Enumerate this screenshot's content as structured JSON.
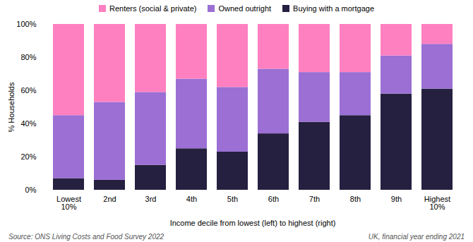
{
  "chart_data": {
    "type": "bar",
    "stacked": true,
    "categories": [
      "Lowest\n10%",
      "2nd",
      "3rd",
      "4th",
      "5th",
      "6th",
      "7th",
      "8th",
      "9th",
      "Highest\n10%"
    ],
    "series": [
      {
        "name": "Buying with a mortgage",
        "color": "#252040",
        "values": [
          7,
          6,
          15,
          25,
          23,
          34,
          41,
          45,
          58,
          61
        ]
      },
      {
        "name": "Owned outright",
        "color": "#9b6fd4",
        "values": [
          38,
          47,
          44,
          42,
          39,
          39,
          30,
          26,
          23,
          27
        ]
      },
      {
        "name": "Renters (social & private)",
        "color": "#ff80c0",
        "values": [
          55,
          47,
          41,
          33,
          38,
          27,
          29,
          29,
          19,
          12
        ]
      }
    ],
    "xlabel": "Income decile from lowest (left) to highest (right)",
    "ylabel": "% Households",
    "ylim": [
      0,
      100
    ],
    "yticks": [
      {
        "value": 0,
        "label": "0%"
      },
      {
        "value": 20,
        "label": "20%"
      },
      {
        "value": 40,
        "label": "40%"
      },
      {
        "value": 60,
        "label": "60%"
      },
      {
        "value": 80,
        "label": "80%"
      },
      {
        "value": 100,
        "label": "100%"
      }
    ],
    "grid": false,
    "legend": "top",
    "annotations": [
      "Source: ONS Living Costs and Food Survey 2022",
      "UK, financial year ending 2021"
    ]
  }
}
